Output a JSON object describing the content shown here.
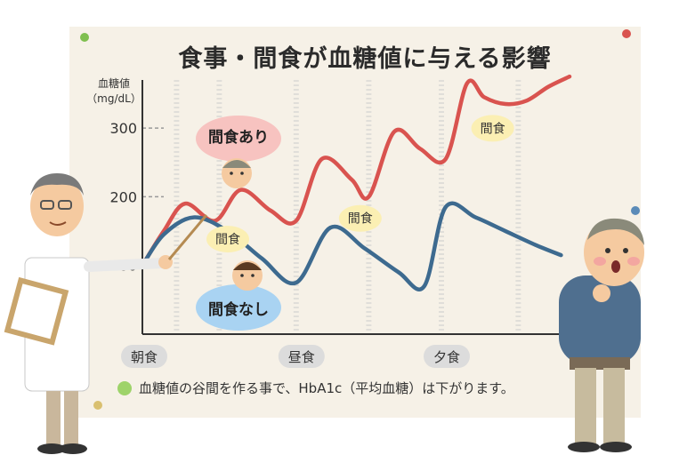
{
  "chart_data": {
    "type": "line",
    "title": "食事・間食が血糖値に与える影響",
    "ylabel_line1": "血糖値",
    "ylabel_line2": "（mg/dL）",
    "yticks": [
      100,
      200,
      300
    ],
    "ylim": [
      0,
      370
    ],
    "xlim": [
      0,
      100
    ],
    "meals": [
      {
        "label": "朝食",
        "x": 0
      },
      {
        "label": "昼食",
        "x": 36
      },
      {
        "label": "夕食",
        "x": 70
      }
    ],
    "series": [
      {
        "name": "間食あり",
        "color": "#d9534f",
        "x": [
          0,
          5,
          10,
          17,
          23,
          30,
          36,
          42,
          49,
          53,
          59,
          65,
          71,
          76,
          80,
          85,
          90,
          95,
          100
        ],
        "y": [
          100,
          150,
          190,
          165,
          210,
          180,
          165,
          255,
          225,
          200,
          295,
          270,
          255,
          365,
          345,
          335,
          340,
          360,
          375
        ]
      },
      {
        "name": "間食なし",
        "color": "#3d6a8f",
        "x": [
          0,
          5,
          12,
          20,
          28,
          36,
          44,
          52,
          60,
          66,
          71,
          78,
          85,
          92,
          98
        ],
        "y": [
          100,
          145,
          170,
          150,
          110,
          75,
          155,
          125,
          90,
          70,
          185,
          170,
          150,
          130,
          115
        ]
      }
    ],
    "annotations": [
      {
        "text": "間食",
        "series": "間食あり",
        "x": 20
      },
      {
        "text": "間食",
        "series": "間食あり",
        "x": 51
      },
      {
        "text": "間食",
        "series": "間食あり",
        "x": 82
      }
    ],
    "series_labels": [
      {
        "text": "間食あり",
        "series": "間食あり"
      },
      {
        "text": "間食なし",
        "series": "間食なし"
      }
    ]
  },
  "footnote": "血糖値の谷間を作る事で、HbA1c（平均血糖）は下がります。",
  "colors": {
    "board": "#f6f1e7",
    "grid_dash": "#cfcfcf",
    "axis": "#333333",
    "bubble_red": "#f7c3c0",
    "bubble_blue": "#a9d3f2",
    "bubble_yellow": "#fbefb3",
    "meal_chip": "#dcdcdc"
  }
}
